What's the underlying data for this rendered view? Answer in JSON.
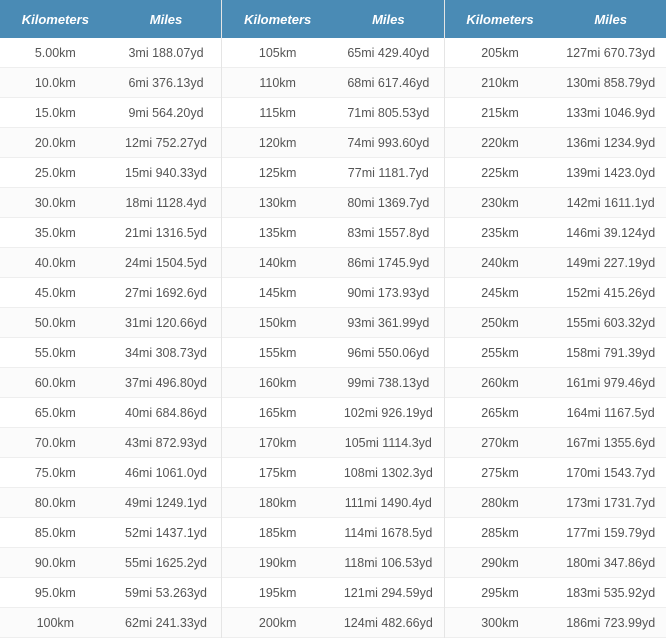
{
  "table": {
    "type": "table",
    "header_bg": "#4a8bb5",
    "header_fg": "#ffffff",
    "row_border": "#eeeeee",
    "text_color": "#555555",
    "column_groups": 3,
    "headers": [
      "Kilometers",
      "Miles"
    ],
    "groups": [
      [
        {
          "km": "5.00km",
          "mi": "3mi 188.07yd"
        },
        {
          "km": "10.0km",
          "mi": "6mi 376.13yd"
        },
        {
          "km": "15.0km",
          "mi": "9mi 564.20yd"
        },
        {
          "km": "20.0km",
          "mi": "12mi 752.27yd"
        },
        {
          "km": "25.0km",
          "mi": "15mi 940.33yd"
        },
        {
          "km": "30.0km",
          "mi": "18mi 1128.4yd"
        },
        {
          "km": "35.0km",
          "mi": "21mi 1316.5yd"
        },
        {
          "km": "40.0km",
          "mi": "24mi 1504.5yd"
        },
        {
          "km": "45.0km",
          "mi": "27mi 1692.6yd"
        },
        {
          "km": "50.0km",
          "mi": "31mi 120.66yd"
        },
        {
          "km": "55.0km",
          "mi": "34mi 308.73yd"
        },
        {
          "km": "60.0km",
          "mi": "37mi 496.80yd"
        },
        {
          "km": "65.0km",
          "mi": "40mi 684.86yd"
        },
        {
          "km": "70.0km",
          "mi": "43mi 872.93yd"
        },
        {
          "km": "75.0km",
          "mi": "46mi 1061.0yd"
        },
        {
          "km": "80.0km",
          "mi": "49mi 1249.1yd"
        },
        {
          "km": "85.0km",
          "mi": "52mi 1437.1yd"
        },
        {
          "km": "90.0km",
          "mi": "55mi 1625.2yd"
        },
        {
          "km": "95.0km",
          "mi": "59mi 53.263yd"
        },
        {
          "km": "100km",
          "mi": "62mi 241.33yd"
        }
      ],
      [
        {
          "km": "105km",
          "mi": "65mi 429.40yd"
        },
        {
          "km": "110km",
          "mi": "68mi 617.46yd"
        },
        {
          "km": "115km",
          "mi": "71mi 805.53yd"
        },
        {
          "km": "120km",
          "mi": "74mi 993.60yd"
        },
        {
          "km": "125km",
          "mi": "77mi 1181.7yd"
        },
        {
          "km": "130km",
          "mi": "80mi 1369.7yd"
        },
        {
          "km": "135km",
          "mi": "83mi 1557.8yd"
        },
        {
          "km": "140km",
          "mi": "86mi 1745.9yd"
        },
        {
          "km": "145km",
          "mi": "90mi 173.93yd"
        },
        {
          "km": "150km",
          "mi": "93mi 361.99yd"
        },
        {
          "km": "155km",
          "mi": "96mi 550.06yd"
        },
        {
          "km": "160km",
          "mi": "99mi 738.13yd"
        },
        {
          "km": "165km",
          "mi": "102mi 926.19yd"
        },
        {
          "km": "170km",
          "mi": "105mi 1114.3yd"
        },
        {
          "km": "175km",
          "mi": "108mi 1302.3yd"
        },
        {
          "km": "180km",
          "mi": "111mi 1490.4yd"
        },
        {
          "km": "185km",
          "mi": "114mi 1678.5yd"
        },
        {
          "km": "190km",
          "mi": "118mi 106.53yd"
        },
        {
          "km": "195km",
          "mi": "121mi 294.59yd"
        },
        {
          "km": "200km",
          "mi": "124mi 482.66yd"
        }
      ],
      [
        {
          "km": "205km",
          "mi": "127mi 670.73yd"
        },
        {
          "km": "210km",
          "mi": "130mi 858.79yd"
        },
        {
          "km": "215km",
          "mi": "133mi 1046.9yd"
        },
        {
          "km": "220km",
          "mi": "136mi 1234.9yd"
        },
        {
          "km": "225km",
          "mi": "139mi 1423.0yd"
        },
        {
          "km": "230km",
          "mi": "142mi 1611.1yd"
        },
        {
          "km": "235km",
          "mi": "146mi 39.124yd"
        },
        {
          "km": "240km",
          "mi": "149mi 227.19yd"
        },
        {
          "km": "245km",
          "mi": "152mi 415.26yd"
        },
        {
          "km": "250km",
          "mi": "155mi 603.32yd"
        },
        {
          "km": "255km",
          "mi": "158mi 791.39yd"
        },
        {
          "km": "260km",
          "mi": "161mi 979.46yd"
        },
        {
          "km": "265km",
          "mi": "164mi 1167.5yd"
        },
        {
          "km": "270km",
          "mi": "167mi 1355.6yd"
        },
        {
          "km": "275km",
          "mi": "170mi 1543.7yd"
        },
        {
          "km": "280km",
          "mi": "173mi 1731.7yd"
        },
        {
          "km": "285km",
          "mi": "177mi 159.79yd"
        },
        {
          "km": "290km",
          "mi": "180mi 347.86yd"
        },
        {
          "km": "295km",
          "mi": "183mi 535.92yd"
        },
        {
          "km": "300km",
          "mi": "186mi 723.99yd"
        }
      ]
    ]
  }
}
